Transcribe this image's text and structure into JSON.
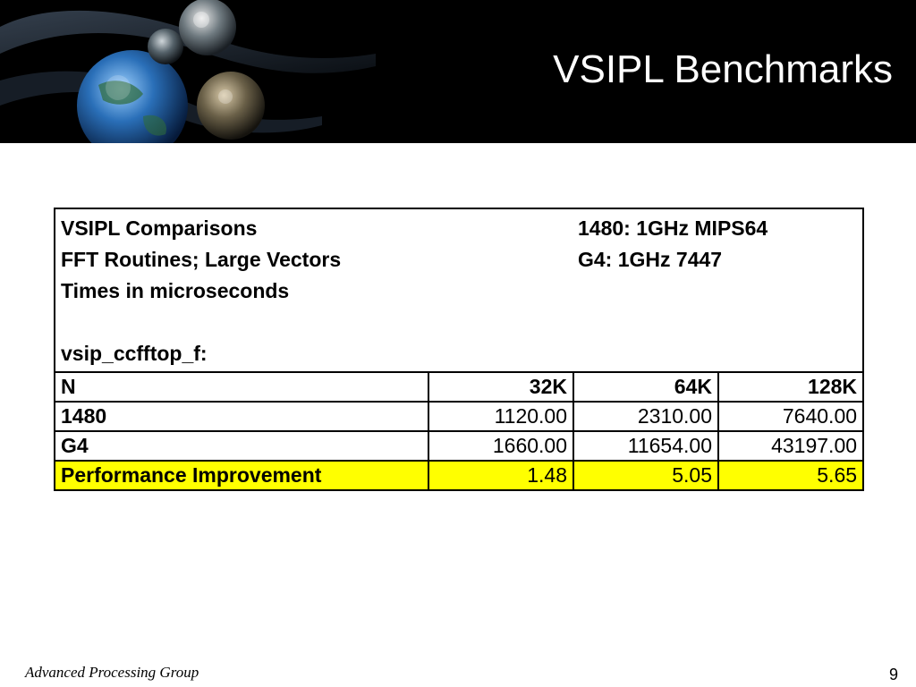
{
  "slide": {
    "title": "VSIPL Benchmarks",
    "footer_text": "Advanced Processing Group",
    "page_number": "9"
  },
  "table": {
    "info": {
      "line1_left": "VSIPL Comparisons",
      "line1_right": "1480: 1GHz MIPS64",
      "line2_left": "FFT Routines; Large Vectors",
      "line2_right": "G4: 1GHz 7447",
      "line3_left": "Times in microseconds",
      "line5_left": "vsip_ccfftop_f:"
    },
    "header": [
      "N",
      "32K",
      "64K",
      "128K"
    ],
    "rows": [
      [
        "1480",
        "1120.00",
        "2310.00",
        "7640.00"
      ],
      [
        "G4",
        "1660.00",
        "11654.00",
        "43197.00"
      ],
      [
        "Performance Improvement",
        "1.48",
        "5.05",
        "5.65"
      ]
    ],
    "highlight_color": "#ffff00"
  },
  "header_art": {
    "icons": [
      "globe-image",
      "planet-image",
      "satellite-orb-image",
      "swirl-graphic"
    ]
  }
}
